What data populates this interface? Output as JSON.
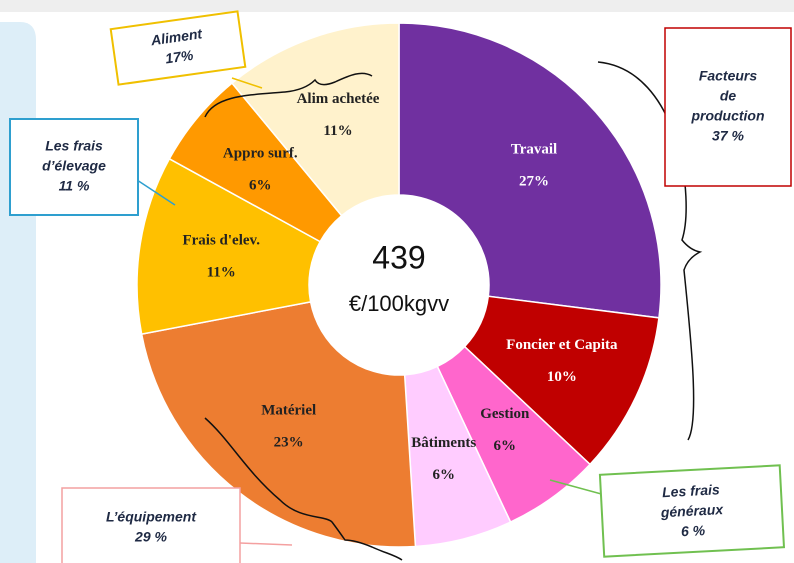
{
  "chart_data": {
    "type": "donut",
    "categories": [
      "Travail",
      "Foncier et Capita",
      "Gestion",
      "Bâtiments",
      "Matériel",
      "Frais d'elev.",
      "Appro surf.",
      "Alim achetée"
    ],
    "values": [
      27,
      10,
      6,
      6,
      23,
      11,
      6,
      11
    ],
    "value_labels": [
      "27%",
      "10%",
      "6%",
      "6%",
      "23%",
      "11%",
      "6%",
      "11%"
    ],
    "colors": [
      "#7030a0",
      "#c00000",
      "#ff66cc",
      "#ffccff",
      "#ed7d31",
      "#ffc000",
      "#ff9900",
      "#fff2cc"
    ],
    "label_colors": [
      "#ffffff",
      "#ffffff",
      "#222222",
      "#222222",
      "#222222",
      "#222222",
      "#222222",
      "#222222"
    ],
    "center_text": [
      "439",
      "€/100kgvv"
    ],
    "annotations": [
      {
        "lines": [
          "Aliment",
          "17%"
        ]
      },
      {
        "lines": [
          "Les frais",
          "d’élevage",
          "11 %"
        ]
      },
      {
        "lines": [
          "Facteurs",
          "de",
          "production",
          "37 %"
        ]
      },
      {
        "lines": [
          "Les frais",
          "généraux",
          "6 %"
        ]
      },
      {
        "lines": [
          "L’équipement",
          "29 %"
        ]
      }
    ]
  }
}
